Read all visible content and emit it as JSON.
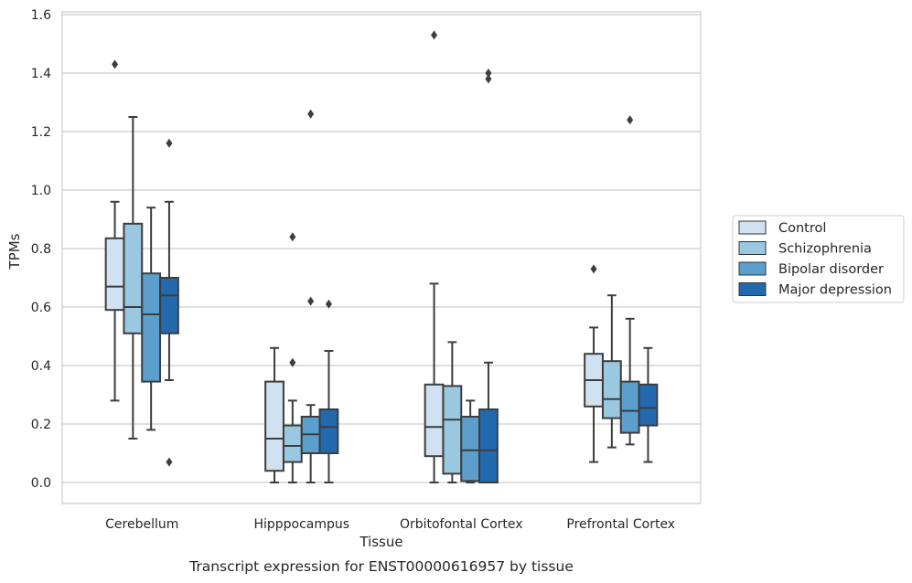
{
  "chart_data": {
    "type": "boxplot",
    "title": "Transcript expression for ENST00000616957 by tissue",
    "xlabel": "Tissue",
    "ylabel": "TPMs",
    "ylim": [
      -0.075,
      1.61
    ],
    "yticks": [
      0.0,
      0.2,
      0.4,
      0.6,
      0.8,
      1.0,
      1.2,
      1.4,
      1.6
    ],
    "ytick_labels": [
      "0.0",
      "0.2",
      "0.4",
      "0.6",
      "0.8",
      "1.0",
      "1.2",
      "1.4",
      "1.6"
    ],
    "grid": true,
    "legend_position": "right",
    "categories": [
      "Cerebellum",
      "Hipppocampus",
      "Orbitofontal Cortex",
      "Prefrontal Cortex"
    ],
    "series": [
      {
        "name": "Control",
        "color": "#d0e1f2",
        "boxes": [
          {
            "whislo": 0.28,
            "q1": 0.59,
            "med": 0.67,
            "q3": 0.835,
            "whishi": 0.96,
            "fliers": [
              1.43
            ]
          },
          {
            "whislo": 0.0,
            "q1": 0.04,
            "med": 0.15,
            "q3": 0.345,
            "whishi": 0.46,
            "fliers": []
          },
          {
            "whislo": 0.0,
            "q1": 0.09,
            "med": 0.19,
            "q3": 0.335,
            "whishi": 0.68,
            "fliers": [
              1.53
            ]
          },
          {
            "whislo": 0.07,
            "q1": 0.26,
            "med": 0.35,
            "q3": 0.44,
            "whishi": 0.53,
            "fliers": [
              0.73
            ]
          }
        ]
      },
      {
        "name": "Schizophrenia",
        "color": "#9ac8e0",
        "boxes": [
          {
            "whislo": 0.15,
            "q1": 0.51,
            "med": 0.6,
            "q3": 0.885,
            "whishi": 1.25,
            "fliers": []
          },
          {
            "whislo": 0.0,
            "q1": 0.07,
            "med": 0.125,
            "q3": 0.195,
            "whishi": 0.28,
            "fliers": [
              0.41,
              0.84
            ]
          },
          {
            "whislo": 0.0,
            "q1": 0.03,
            "med": 0.215,
            "q3": 0.33,
            "whishi": 0.48,
            "fliers": []
          },
          {
            "whislo": 0.12,
            "q1": 0.22,
            "med": 0.285,
            "q3": 0.415,
            "whishi": 0.64,
            "fliers": []
          }
        ]
      },
      {
        "name": "Bipolar disorder",
        "color": "#5c9fcc",
        "boxes": [
          {
            "whislo": 0.18,
            "q1": 0.345,
            "med": 0.575,
            "q3": 0.715,
            "whishi": 0.94,
            "fliers": []
          },
          {
            "whislo": 0.0,
            "q1": 0.1,
            "med": 0.165,
            "q3": 0.225,
            "whishi": 0.265,
            "fliers": [
              0.62,
              1.26
            ]
          },
          {
            "whislo": 0.0,
            "q1": 0.005,
            "med": 0.11,
            "q3": 0.225,
            "whishi": 0.28,
            "fliers": []
          },
          {
            "whislo": 0.13,
            "q1": 0.17,
            "med": 0.245,
            "q3": 0.345,
            "whishi": 0.56,
            "fliers": [
              1.24
            ]
          }
        ]
      },
      {
        "name": "Major depression",
        "color": "#2369ad",
        "boxes": [
          {
            "whislo": 0.35,
            "q1": 0.51,
            "med": 0.64,
            "q3": 0.7,
            "whishi": 0.96,
            "fliers": [
              0.07,
              1.16
            ]
          },
          {
            "whislo": 0.0,
            "q1": 0.1,
            "med": 0.19,
            "q3": 0.25,
            "whishi": 0.45,
            "fliers": [
              0.61
            ]
          },
          {
            "whislo": 0.0,
            "q1": 0.0,
            "med": 0.11,
            "q3": 0.25,
            "whishi": 0.41,
            "fliers": [
              1.38,
              1.4
            ]
          },
          {
            "whislo": 0.07,
            "q1": 0.195,
            "med": 0.255,
            "q3": 0.335,
            "whishi": 0.46,
            "fliers": []
          }
        ]
      }
    ]
  }
}
